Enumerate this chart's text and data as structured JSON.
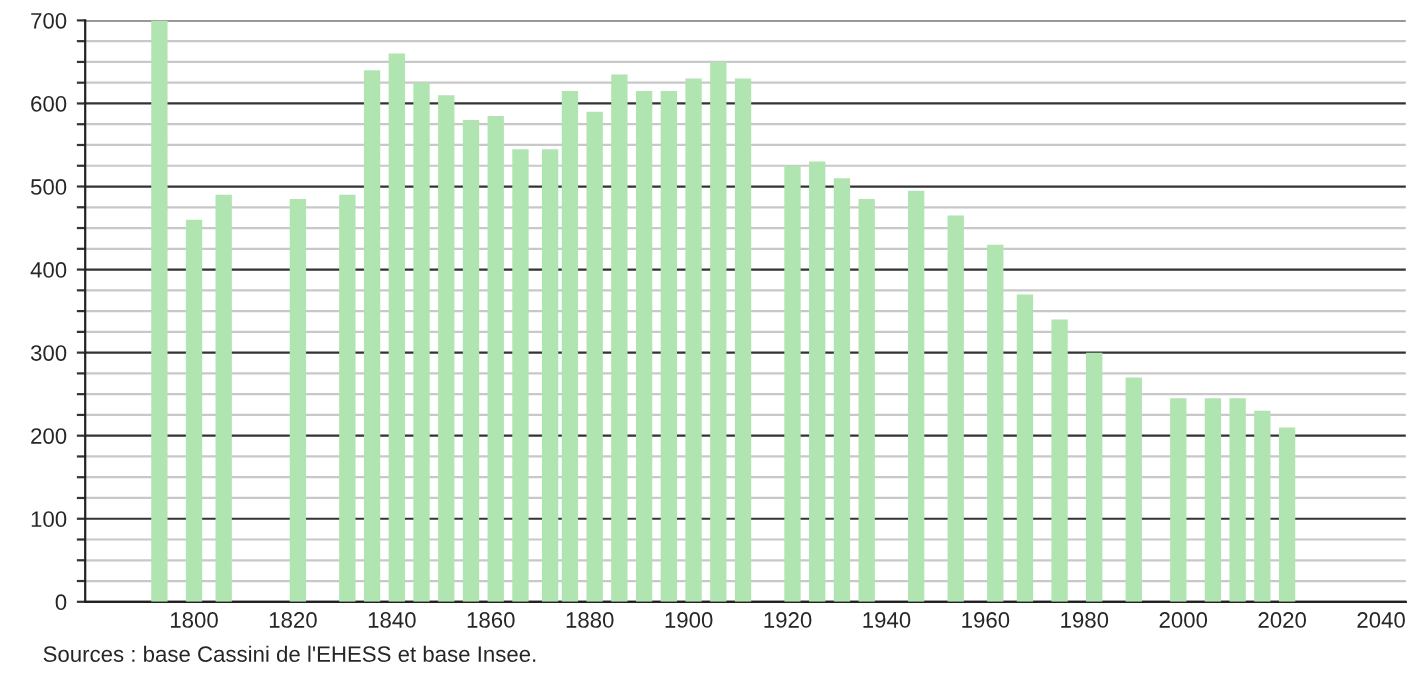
{
  "chart_data": {
    "type": "bar",
    "color": "#b0e4b0",
    "x": [
      1793,
      1800,
      1806,
      1821,
      1831,
      1836,
      1841,
      1846,
      1851,
      1856,
      1861,
      1866,
      1872,
      1876,
      1881,
      1886,
      1891,
      1896,
      1901,
      1906,
      1911,
      1921,
      1926,
      1931,
      1936,
      1946,
      1954,
      1962,
      1968,
      1975,
      1982,
      1990,
      1999,
      2006,
      2011,
      2016,
      2021
    ],
    "values": [
      700,
      460,
      490,
      485,
      490,
      640,
      660,
      625,
      610,
      580,
      585,
      545,
      545,
      615,
      590,
      635,
      615,
      615,
      630,
      650,
      630,
      525,
      530,
      510,
      485,
      495,
      465,
      430,
      370,
      340,
      300,
      270,
      245,
      245,
      245,
      230,
      210
    ],
    "xlim": [
      1778,
      2045
    ],
    "xticks": [
      1800,
      1820,
      1840,
      1860,
      1880,
      1900,
      1920,
      1940,
      1960,
      1980,
      2000,
      2020,
      2040
    ],
    "ylim": [
      0,
      700
    ],
    "yticks": [
      0,
      {
        "value": 25,
        "label": null
      },
      {
        "value": 50,
        "label": null
      },
      {
        "value": 75,
        "label": null
      },
      100,
      {
        "value": 125,
        "label": null
      },
      {
        "value": 150,
        "label": null
      },
      {
        "value": 175,
        "label": null
      },
      200,
      {
        "value": 225,
        "label": null
      },
      {
        "value": 250,
        "label": null
      },
      {
        "value": 275,
        "label": null
      },
      300,
      {
        "value": 325,
        "label": null
      },
      {
        "value": 350,
        "label": null
      },
      {
        "value": 375,
        "label": null
      },
      400,
      {
        "value": 425,
        "label": null
      },
      {
        "value": 450,
        "label": null
      },
      {
        "value": 475,
        "label": null
      },
      500,
      {
        "value": 525,
        "label": null
      },
      {
        "value": 550,
        "label": null
      },
      {
        "value": 575,
        "label": null
      },
      600,
      {
        "value": 625,
        "label": null
      },
      {
        "value": 650,
        "label": null
      },
      {
        "value": 675,
        "label": null
      },
      700
    ],
    "grid": "y",
    "annotations": [
      "Sources : base Cassini de l'EHESS et base Insee."
    ]
  }
}
